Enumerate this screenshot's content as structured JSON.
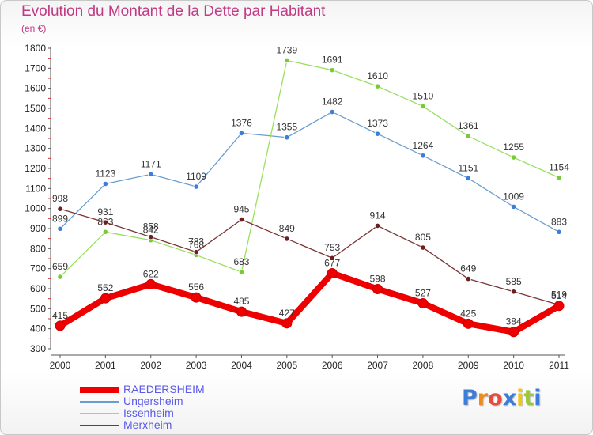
{
  "header": {
    "title": "Evolution du Montant de la Dette par Habitant",
    "subtitle": "(en €)"
  },
  "logo": {
    "letters": [
      "P",
      "r",
      "o",
      "x",
      "i",
      "t",
      "i"
    ],
    "colors": [
      "#3b7dd8",
      "#f08a1c",
      "#e84a3c",
      "#3b7dd8",
      "#f0c419",
      "#9bc83a",
      "#3b7dd8"
    ]
  },
  "chart_data": {
    "type": "line",
    "title": "Evolution du Montant de la Dette par Habitant",
    "subtitle": "(en €)",
    "xlabel": "",
    "ylabel": "",
    "x": [
      "2000",
      "2001",
      "2002",
      "2003",
      "2004",
      "2005",
      "2006",
      "2007",
      "2008",
      "2009",
      "2010",
      "2011"
    ],
    "ylim": [
      300,
      1800
    ],
    "yticks": [
      "300",
      "400",
      "500",
      "600",
      "700",
      "800",
      "900",
      "1000",
      "1100",
      "1200",
      "1300",
      "1400",
      "1500",
      "1600",
      "1700",
      "1800"
    ],
    "legend_position": "bottom-left",
    "grid": false,
    "series": [
      {
        "name": "RAEDERSHEIM",
        "color": "#ee0000",
        "values": [
          415,
          552,
          622,
          556,
          485,
          427,
          677,
          598,
          527,
          425,
          384,
          514
        ],
        "labels": [
          "415",
          "552",
          "622",
          "556",
          "485",
          "427",
          "677",
          "598",
          "527",
          "425",
          "384",
          "514"
        ]
      },
      {
        "name": "Ungersheim",
        "color": "#6a9ed0",
        "marker": "#3b7dd8",
        "values": [
          899,
          1123,
          1171,
          1109,
          1376,
          1355,
          1482,
          1373,
          1264,
          1151,
          1009,
          883
        ],
        "labels": [
          "899",
          "1123",
          "1171",
          "1109",
          "1376",
          "1355",
          "1482",
          "1373",
          "1264",
          "1151",
          "1009",
          "883"
        ]
      },
      {
        "name": "Issenheim",
        "color": "#99e060",
        "marker": "#77cc33",
        "values": [
          659,
          883,
          842,
          768,
          683,
          1739,
          1691,
          1610,
          1510,
          1361,
          1255,
          1154
        ],
        "labels": [
          "659",
          "883",
          "842",
          "768",
          "683",
          "1739",
          "1691",
          "1610",
          "1510",
          "1361",
          "1255",
          "1154"
        ]
      },
      {
        "name": "Merxheim",
        "color": "#7a3535",
        "marker": "#6a2020",
        "values": [
          998,
          931,
          858,
          783,
          945,
          849,
          753,
          914,
          805,
          649,
          585,
          519
        ],
        "labels": [
          "998",
          "931",
          "858",
          "783",
          "945",
          "849",
          "753",
          "914",
          "805",
          "649",
          "585",
          "519"
        ]
      }
    ]
  }
}
